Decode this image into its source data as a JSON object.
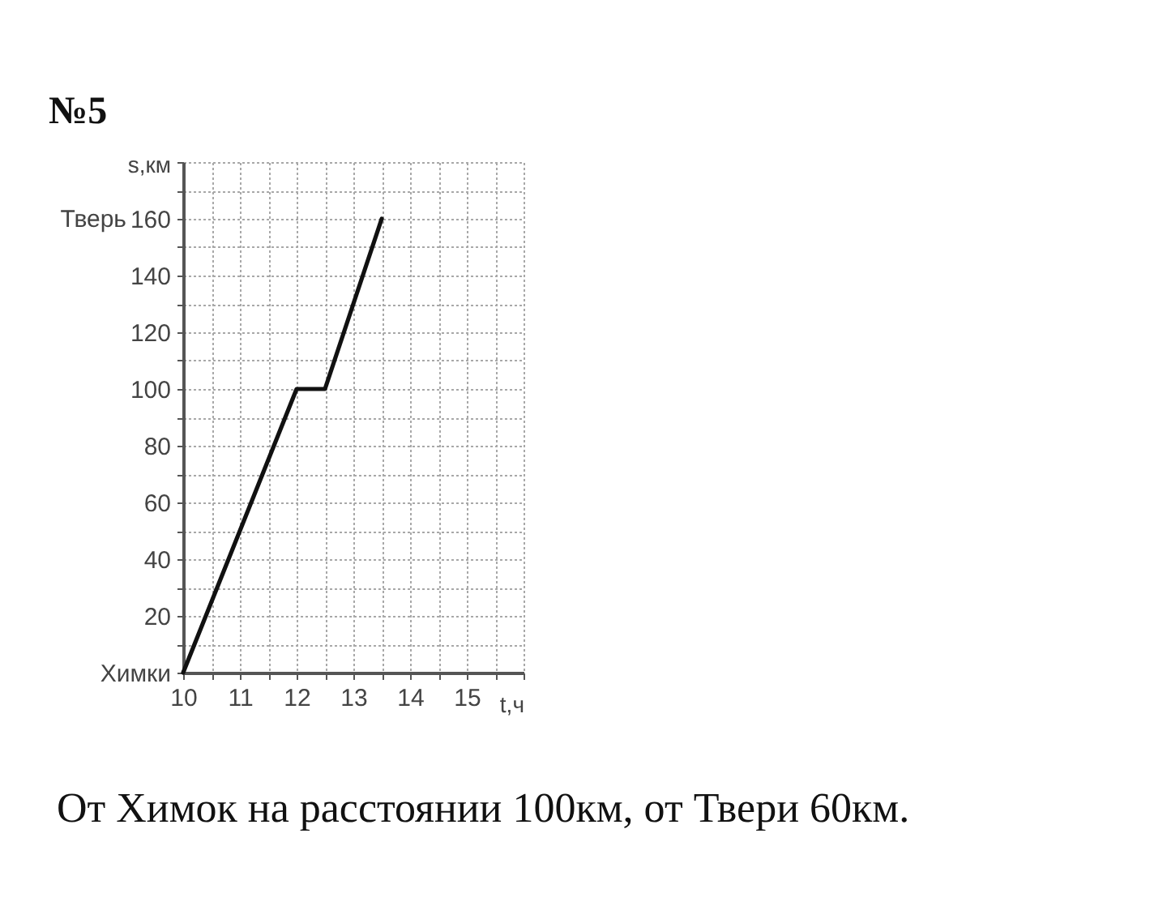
{
  "chart_data": {
    "type": "line",
    "title": "№5",
    "xlabel": "t,ч",
    "ylabel": "s,км",
    "x": [
      10,
      12,
      12.5,
      13.5
    ],
    "series": [
      {
        "color": "#111111",
        "values": [
          0,
          100,
          100,
          160
        ]
      }
    ],
    "xlim": [
      10,
      16
    ],
    "xticks": [
      10,
      {
        "value": 10.5,
        "label": null
      },
      11,
      {
        "value": 11.5,
        "label": null
      },
      12,
      {
        "value": 12.5,
        "label": null
      },
      13,
      {
        "value": 13.5,
        "label": null
      },
      14,
      {
        "value": 14.5,
        "label": null
      },
      15,
      {
        "value": 15.5,
        "label": null
      },
      {
        "value": 16,
        "label": null
      }
    ],
    "ylim": [
      0,
      180
    ],
    "yticks": [
      {
        "value": 0,
        "label": "Химки"
      },
      {
        "value": 10,
        "label": null
      },
      20,
      {
        "value": 30,
        "label": null
      },
      40,
      {
        "value": 50,
        "label": null
      },
      60,
      {
        "value": 70,
        "label": null
      },
      80,
      {
        "value": 90,
        "label": null
      },
      100,
      {
        "value": 110,
        "label": null
      },
      120,
      {
        "value": 130,
        "label": null
      },
      140,
      {
        "value": 150,
        "label": null
      },
      160,
      {
        "value": 170,
        "label": null
      },
      {
        "value": 180,
        "label": null
      }
    ],
    "grid": true,
    "annotations": [
      "Тверь",
      "От Химок на расстоянии 100км, от Твери 60км."
    ]
  }
}
